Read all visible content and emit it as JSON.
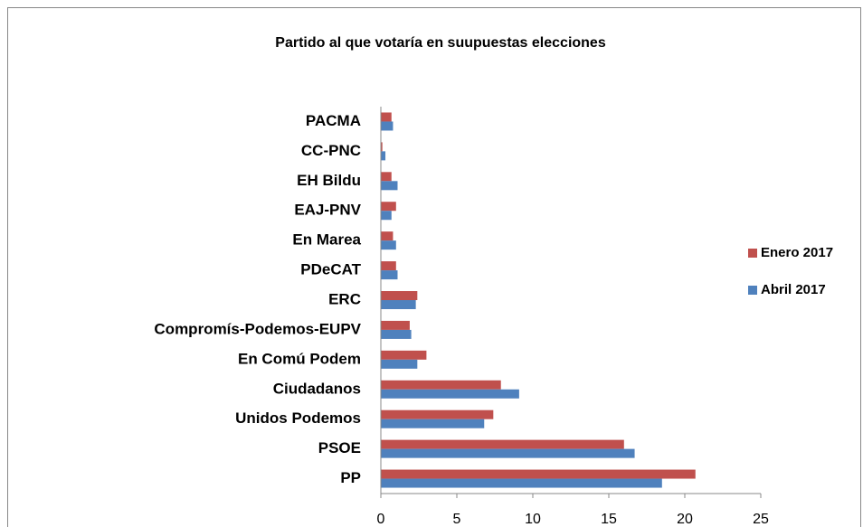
{
  "chart_data": {
    "type": "barh",
    "title": "Partido al que votaría en suupuestas elecciones",
    "categories": [
      "PP",
      "PSOE",
      "Unidos Podemos",
      "Ciudadanos",
      "En Comú Podem",
      "Compromís-Podemos-EUPV",
      "ERC",
      "PDeCAT",
      "En Marea",
      "EAJ-PNV",
      "EH Bildu",
      "CC-PNC",
      "PACMA"
    ],
    "series": [
      {
        "name": "Enero 2017",
        "color": "#c0504d",
        "values": [
          20.7,
          16.0,
          7.4,
          7.9,
          3.0,
          1.9,
          2.4,
          1.0,
          0.8,
          1.0,
          0.7,
          0.1,
          0.7
        ]
      },
      {
        "name": "Abril 2017",
        "color": "#4f81bd",
        "values": [
          18.5,
          16.7,
          6.8,
          9.1,
          2.4,
          2.0,
          2.3,
          1.1,
          1.0,
          0.7,
          1.1,
          0.3,
          0.8
        ]
      }
    ],
    "xlim": [
      0,
      25
    ],
    "xticks": [
      0,
      5,
      10,
      15,
      20,
      25
    ],
    "grid": false,
    "legend": "right"
  }
}
